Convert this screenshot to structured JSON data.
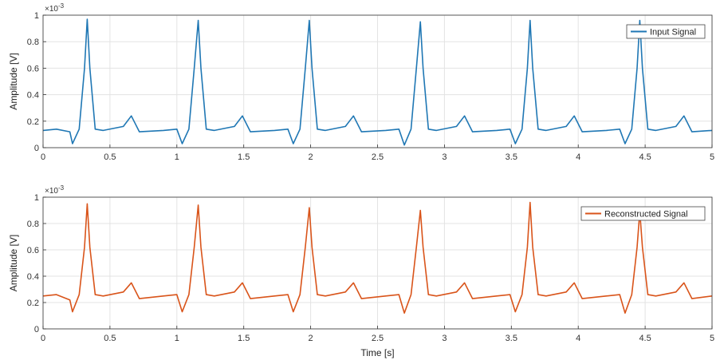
{
  "chart_data": [
    {
      "type": "line",
      "xlim": [
        0,
        5
      ],
      "ylim": [
        0,
        0.001
      ],
      "x_ticks": [
        "0",
        "0.5",
        "1",
        "1.5",
        "2",
        "2.5",
        "3",
        "3.5",
        "4",
        "4.5",
        "5"
      ],
      "y_ticks": [
        "0",
        "0.2",
        "0.4",
        "0.6",
        "0.8",
        "1"
      ],
      "y_exponent_base": "×10",
      "y_exponent_power": "-3",
      "ylabel": "Amplitude [V]",
      "xlabel": "",
      "grid": true,
      "legend_position": "top-right",
      "color": "#1f77b4",
      "series": [
        {
          "name": "Input Signal",
          "x": [
            0,
            0.1,
            0.2,
            0.22,
            0.27,
            0.31,
            0.33,
            0.35,
            0.39,
            0.45,
            0.6,
            0.66,
            0.72,
            0.9,
            1.0,
            1.04,
            1.09,
            1.13,
            1.16,
            1.18,
            1.22,
            1.28,
            1.43,
            1.49,
            1.55,
            1.73,
            1.83,
            1.87,
            1.92,
            1.96,
            1.99,
            2.01,
            2.05,
            2.11,
            2.26,
            2.32,
            2.38,
            2.56,
            2.66,
            2.7,
            2.75,
            2.79,
            2.82,
            2.84,
            2.88,
            2.94,
            3.09,
            3.15,
            3.21,
            3.39,
            3.49,
            3.53,
            3.58,
            3.62,
            3.64,
            3.66,
            3.7,
            3.76,
            3.91,
            3.97,
            4.03,
            4.21,
            4.31,
            4.35,
            4.4,
            4.44,
            4.46,
            4.48,
            4.52,
            4.58,
            4.73,
            4.79,
            4.85,
            5.0
          ],
          "y": [
            0.00013,
            0.00014,
            0.00012,
            3e-05,
            0.00014,
            0.0006,
            0.00097,
            0.0006,
            0.00014,
            0.00013,
            0.00016,
            0.00024,
            0.00012,
            0.00013,
            0.00014,
            3e-05,
            0.00014,
            0.0006,
            0.00096,
            0.0006,
            0.00014,
            0.00013,
            0.00016,
            0.00024,
            0.00012,
            0.00013,
            0.00014,
            3e-05,
            0.00014,
            0.0006,
            0.00096,
            0.0006,
            0.00014,
            0.00013,
            0.00016,
            0.00024,
            0.00012,
            0.00013,
            0.00014,
            2e-05,
            0.00014,
            0.0006,
            0.00095,
            0.0006,
            0.00014,
            0.00013,
            0.00016,
            0.00024,
            0.00012,
            0.00013,
            0.00014,
            3e-05,
            0.00014,
            0.0006,
            0.00096,
            0.0006,
            0.00014,
            0.00013,
            0.00016,
            0.00024,
            0.00012,
            0.00013,
            0.00014,
            3e-05,
            0.00014,
            0.0006,
            0.00096,
            0.0006,
            0.00014,
            0.00013,
            0.00016,
            0.00024,
            0.00012,
            0.00013
          ]
        }
      ]
    },
    {
      "type": "line",
      "xlim": [
        0,
        5
      ],
      "ylim": [
        0,
        0.001
      ],
      "x_ticks": [
        "0",
        "0.5",
        "1",
        "1.5",
        "2",
        "2.5",
        "3",
        "3.5",
        "4",
        "4.5",
        "5"
      ],
      "y_ticks": [
        "0",
        "0.2",
        "0.4",
        "0.6",
        "0.8",
        "1"
      ],
      "y_exponent_base": "×10",
      "y_exponent_power": "-3",
      "ylabel": "Amplitude [V]",
      "xlabel": "Time [s]",
      "grid": true,
      "legend_position": "top-right",
      "color": "#d9541a",
      "series": [
        {
          "name": "Reconstructed Signal",
          "x": [
            0,
            0.1,
            0.2,
            0.22,
            0.27,
            0.31,
            0.33,
            0.35,
            0.39,
            0.45,
            0.6,
            0.66,
            0.72,
            0.9,
            1.0,
            1.04,
            1.09,
            1.13,
            1.16,
            1.18,
            1.22,
            1.28,
            1.43,
            1.49,
            1.55,
            1.73,
            1.83,
            1.87,
            1.92,
            1.96,
            1.99,
            2.01,
            2.05,
            2.11,
            2.26,
            2.32,
            2.38,
            2.56,
            2.66,
            2.7,
            2.75,
            2.79,
            2.82,
            2.84,
            2.88,
            2.94,
            3.09,
            3.15,
            3.21,
            3.39,
            3.49,
            3.53,
            3.58,
            3.62,
            3.64,
            3.66,
            3.7,
            3.76,
            3.91,
            3.97,
            4.03,
            4.21,
            4.31,
            4.35,
            4.4,
            4.44,
            4.46,
            4.48,
            4.52,
            4.58,
            4.73,
            4.79,
            4.85,
            5.0
          ],
          "y": [
            0.00025,
            0.00026,
            0.00022,
            0.00013,
            0.00026,
            0.00062,
            0.00095,
            0.00062,
            0.00026,
            0.00025,
            0.00028,
            0.00035,
            0.00023,
            0.00025,
            0.00026,
            0.00013,
            0.00026,
            0.00062,
            0.00094,
            0.00062,
            0.00026,
            0.00025,
            0.00028,
            0.00035,
            0.00023,
            0.00025,
            0.00026,
            0.00013,
            0.00026,
            0.00062,
            0.00092,
            0.00062,
            0.00026,
            0.00025,
            0.00028,
            0.00035,
            0.00023,
            0.00025,
            0.00026,
            0.00012,
            0.00026,
            0.00062,
            0.0009,
            0.00062,
            0.00026,
            0.00025,
            0.00028,
            0.00035,
            0.00023,
            0.00025,
            0.00026,
            0.00013,
            0.00026,
            0.00062,
            0.00096,
            0.00062,
            0.00026,
            0.00025,
            0.00028,
            0.00035,
            0.00023,
            0.00025,
            0.00026,
            0.00012,
            0.00026,
            0.00062,
            0.00089,
            0.00062,
            0.00026,
            0.00025,
            0.00028,
            0.00035,
            0.00023,
            0.00025
          ]
        }
      ]
    }
  ]
}
